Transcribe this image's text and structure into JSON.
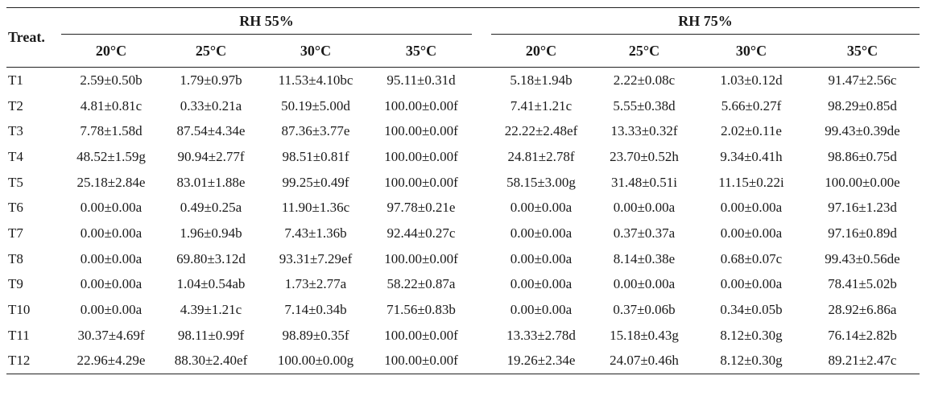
{
  "table": {
    "corner_label": "Treat.",
    "groups": [
      "RH 55%",
      "RH 75%"
    ],
    "temps": [
      "20°C",
      "25°C",
      "30°C",
      "35°C",
      "20°C",
      "25°C",
      "30°C",
      "35°C"
    ],
    "rows": [
      {
        "label": "T1",
        "cells": [
          "2.59±0.50b",
          "1.79±0.97b",
          "11.53±4.10bc",
          "95.11±0.31d",
          "5.18±1.94b",
          "2.22±0.08c",
          "1.03±0.12d",
          "91.47±2.56c"
        ]
      },
      {
        "label": "T2",
        "cells": [
          "4.81±0.81c",
          "0.33±0.21a",
          "50.19±5.00d",
          "100.00±0.00f",
          "7.41±1.21c",
          "5.55±0.38d",
          "5.66±0.27f",
          "98.29±0.85d"
        ]
      },
      {
        "label": "T3",
        "cells": [
          "7.78±1.58d",
          "87.54±4.34e",
          "87.36±3.77e",
          "100.00±0.00f",
          "22.22±2.48ef",
          "13.33±0.32f",
          "2.02±0.11e",
          "99.43±0.39de"
        ]
      },
      {
        "label": "T4",
        "cells": [
          "48.52±1.59g",
          "90.94±2.77f",
          "98.51±0.81f",
          "100.00±0.00f",
          "24.81±2.78f",
          "23.70±0.52h",
          "9.34±0.41h",
          "98.86±0.75d"
        ]
      },
      {
        "label": "T5",
        "cells": [
          "25.18±2.84e",
          "83.01±1.88e",
          "99.25±0.49f",
          "100.00±0.00f",
          "58.15±3.00g",
          "31.48±0.51i",
          "11.15±0.22i",
          "100.00±0.00e"
        ]
      },
      {
        "label": "T6",
        "cells": [
          "0.00±0.00a",
          "0.49±0.25a",
          "11.90±1.36c",
          "97.78±0.21e",
          "0.00±0.00a",
          "0.00±0.00a",
          "0.00±0.00a",
          "97.16±1.23d"
        ]
      },
      {
        "label": "T7",
        "cells": [
          "0.00±0.00a",
          "1.96±0.94b",
          "7.43±1.36b",
          "92.44±0.27c",
          "0.00±0.00a",
          "0.37±0.37a",
          "0.00±0.00a",
          "97.16±0.89d"
        ]
      },
      {
        "label": "T8",
        "cells": [
          "0.00±0.00a",
          "69.80±3.12d",
          "93.31±7.29ef",
          "100.00±0.00f",
          "0.00±0.00a",
          "8.14±0.38e",
          "0.68±0.07c",
          "99.43±0.56de"
        ]
      },
      {
        "label": "T9",
        "cells": [
          "0.00±0.00a",
          "1.04±0.54ab",
          "1.73±2.77a",
          "58.22±0.87a",
          "0.00±0.00a",
          "0.00±0.00a",
          "0.00±0.00a",
          "78.41±5.02b"
        ]
      },
      {
        "label": "T10",
        "cells": [
          "0.00±0.00a",
          "4.39±1.21c",
          "7.14±0.34b",
          "71.56±0.83b",
          "0.00±0.00a",
          "0.37±0.06b",
          "0.34±0.05b",
          "28.92±6.86a"
        ]
      },
      {
        "label": "T11",
        "cells": [
          "30.37±4.69f",
          "98.11±0.99f",
          "98.89±0.35f",
          "100.00±0.00f",
          "13.33±2.78d",
          "15.18±0.43g",
          "8.12±0.30g",
          "76.14±2.82b"
        ]
      },
      {
        "label": "T12",
        "cells": [
          "22.96±4.29e",
          "88.30±2.40ef",
          "100.00±0.00g",
          "100.00±0.00f",
          "19.26±2.34e",
          "24.07±0.46h",
          "8.12±0.30g",
          "89.21±2.47c"
        ]
      }
    ]
  }
}
